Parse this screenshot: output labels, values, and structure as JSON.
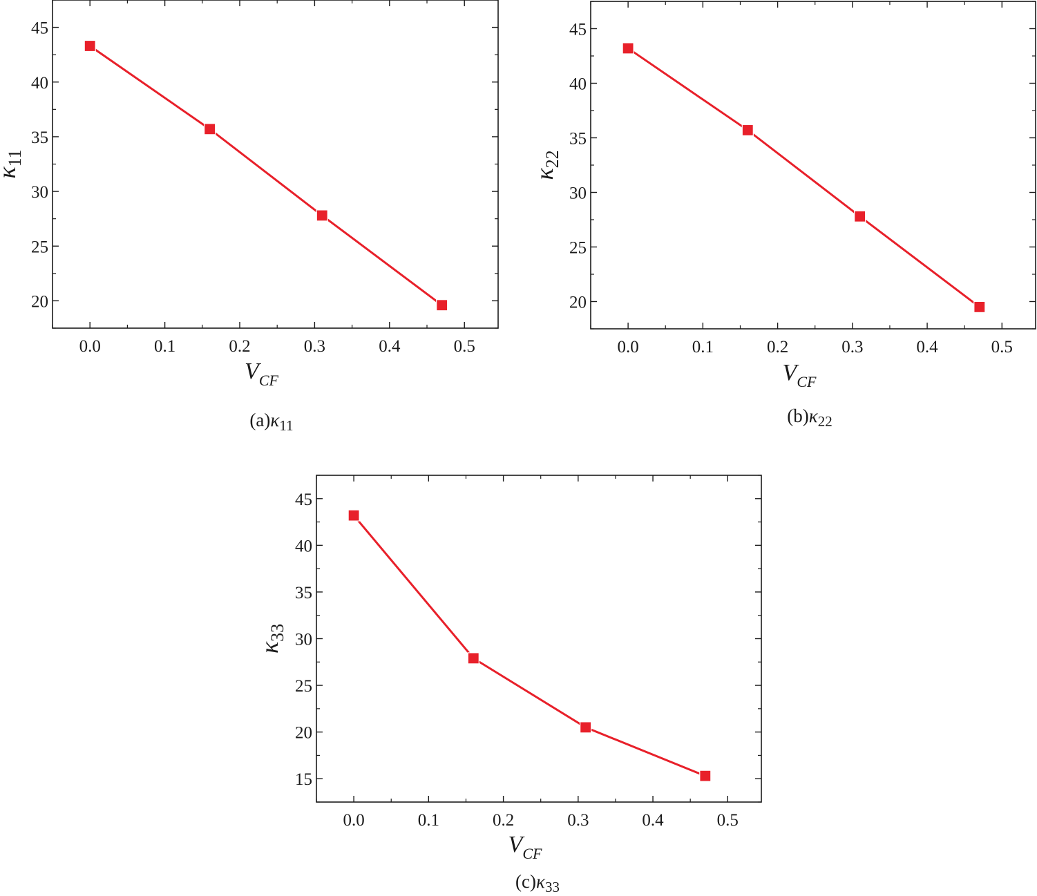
{
  "chart_data": [
    {
      "type": "line",
      "caption": "(a)κ11",
      "caption_prefix": "(a)",
      "caption_symbol": "κ",
      "caption_sub": "11",
      "xlabel_main": "V",
      "xlabel_sub": "CF",
      "ylabel_main": "κ",
      "ylabel_sub": "11",
      "xlim": [
        -0.05,
        0.545
      ],
      "ylim": [
        17.5,
        47.5
      ],
      "xticks": [
        "0.0",
        "0.1",
        "0.2",
        "0.3",
        "0.4",
        "0.5"
      ],
      "yticks": [
        "20",
        "25",
        "30",
        "35",
        "40",
        "45"
      ],
      "series": [
        {
          "x": [
            0.0,
            0.16,
            0.31,
            0.47
          ],
          "y": [
            43.3,
            35.7,
            27.8,
            19.6
          ]
        }
      ],
      "color": "#e8202a",
      "grid": false
    },
    {
      "type": "line",
      "caption": "(b)κ22",
      "caption_prefix": "(b)",
      "caption_symbol": "κ",
      "caption_sub": "22",
      "xlabel_main": "V",
      "xlabel_sub": "CF",
      "ylabel_main": "κ",
      "ylabel_sub": "22",
      "xlim": [
        -0.05,
        0.545
      ],
      "ylim": [
        17.5,
        47.5
      ],
      "xticks": [
        "0.0",
        "0.1",
        "0.2",
        "0.3",
        "0.4",
        "0.5"
      ],
      "yticks": [
        "20",
        "25",
        "30",
        "35",
        "40",
        "45"
      ],
      "series": [
        {
          "x": [
            0.0,
            0.16,
            0.31,
            0.47
          ],
          "y": [
            43.2,
            35.7,
            27.8,
            19.5
          ]
        }
      ],
      "color": "#e8202a",
      "grid": false
    },
    {
      "type": "line",
      "caption": "(c)κ33",
      "caption_prefix": "(c)",
      "caption_symbol": "κ",
      "caption_sub": "33",
      "xlabel_main": "V",
      "xlabel_sub": "CF",
      "ylabel_main": "κ",
      "ylabel_sub": "33",
      "xlim": [
        -0.05,
        0.545
      ],
      "ylim": [
        12.5,
        47.5
      ],
      "xticks": [
        "0.0",
        "0.1",
        "0.2",
        "0.3",
        "0.4",
        "0.5"
      ],
      "yticks": [
        "15",
        "20",
        "25",
        "30",
        "35",
        "40",
        "45"
      ],
      "series": [
        {
          "x": [
            0.0,
            0.16,
            0.31,
            0.47
          ],
          "y": [
            43.2,
            27.9,
            20.5,
            15.3
          ]
        }
      ],
      "color": "#e8202a",
      "grid": false
    }
  ]
}
